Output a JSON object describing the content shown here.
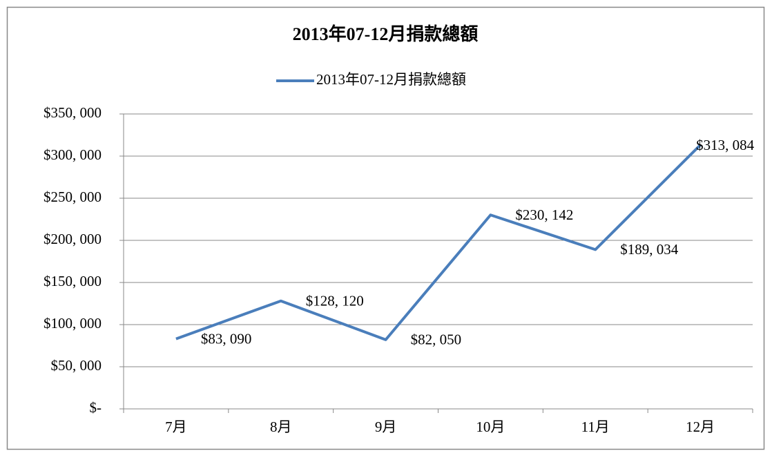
{
  "chart_data": {
    "type": "line",
    "title": "2013年07-12月捐款總額",
    "categories": [
      "7月",
      "8月",
      "9月",
      "10月",
      "11月",
      "12月"
    ],
    "series": [
      {
        "name": "2013年07-12月捐款總額",
        "color": "#4a7ebb",
        "values": [
          83090,
          128120,
          82050,
          230142,
          189034,
          313084
        ],
        "value_labels": [
          "$83, 090",
          "$128, 120",
          "$82, 050",
          "$230, 142",
          "$189, 034",
          "$313, 084"
        ]
      }
    ],
    "ylim": [
      0,
      350000
    ],
    "yticks": [
      {
        "value": 0,
        "label": "$-"
      },
      {
        "value": 50000,
        "label": "$50, 000"
      },
      {
        "value": 100000,
        "label": "$100, 000"
      },
      {
        "value": 150000,
        "label": "$150, 000"
      },
      {
        "value": 200000,
        "label": "$200, 000"
      },
      {
        "value": 250000,
        "label": "$250, 000"
      },
      {
        "value": 300000,
        "label": "$300, 000"
      },
      {
        "value": 350000,
        "label": "$350, 000"
      }
    ],
    "grid": true,
    "legend": "top"
  }
}
